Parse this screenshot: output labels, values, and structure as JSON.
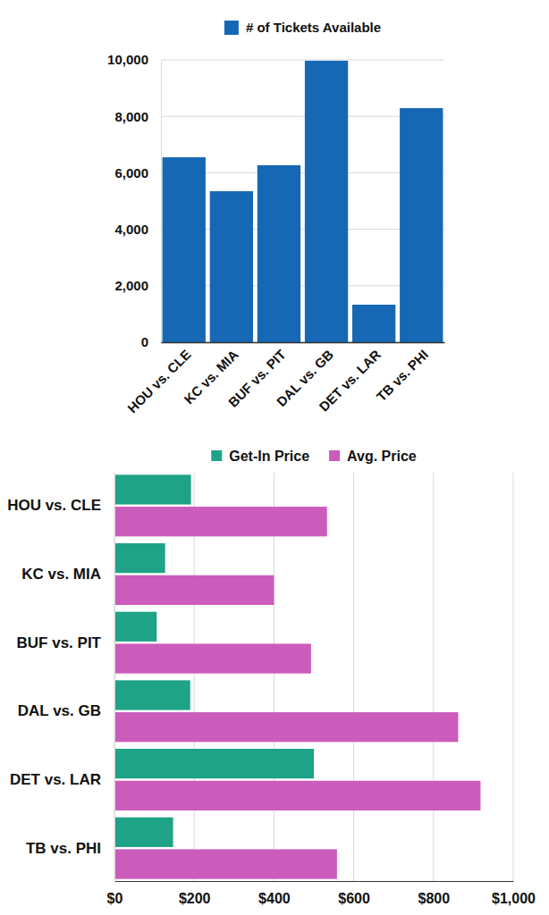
{
  "chart_data": [
    {
      "type": "bar",
      "categories": [
        "HOU vs. CLE",
        "KC vs. MIA",
        "BUF vs. PIT",
        "DAL vs. GB",
        "DET vs. LAR",
        "TB vs. PHI"
      ],
      "series": [
        {
          "name": "# of Tickets Available",
          "color": "#1668b5",
          "values": [
            6550,
            5350,
            6270,
            9970,
            1330,
            8290
          ]
        }
      ],
      "ylim": [
        0,
        10000
      ],
      "yticks": [
        0,
        {
          "value": 2000,
          "label": "2,000"
        },
        {
          "value": 4000,
          "label": "4,000"
        },
        {
          "value": 6000,
          "label": "6,000"
        },
        {
          "value": 8000,
          "label": "8,000"
        },
        {
          "value": 10000,
          "label": "10,000"
        }
      ],
      "grid": true,
      "legend": "top"
    },
    {
      "type": "bar",
      "orientation": "horizontal",
      "categories": [
        "HOU vs. CLE",
        "KC vs. MIA",
        "BUF vs. PIT",
        "DAL vs. GB",
        "DET vs. LAR",
        "TB vs. PHI"
      ],
      "series": [
        {
          "name": "Get-In Price",
          "color": "#1fa387",
          "values": [
            192,
            127,
            106,
            190,
            500,
            147
          ]
        },
        {
          "name": "Avg. Price",
          "color": "#cc5cbb",
          "values": [
            533,
            400,
            493,
            862,
            918,
            558
          ]
        }
      ],
      "xlim": [
        0,
        1000
      ],
      "xticks": [
        {
          "value": 0,
          "label": "$0"
        },
        {
          "value": 200,
          "label": "$200"
        },
        {
          "value": 400,
          "label": "$400"
        },
        {
          "value": 600,
          "label": "$600"
        },
        {
          "value": 800,
          "label": "$800"
        },
        {
          "value": 1000,
          "label": "$1,000"
        }
      ],
      "grid": true,
      "legend": "top"
    }
  ]
}
